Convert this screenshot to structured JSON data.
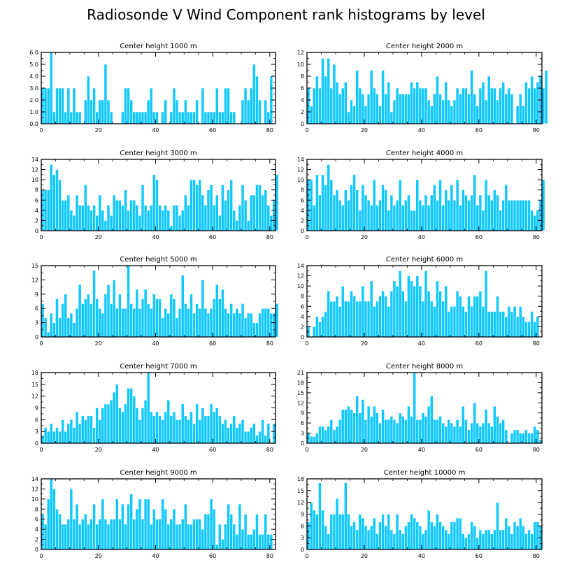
{
  "title": "Radiosonde V Wind Component rank histograms by level",
  "colors": {
    "bar": "#11c8ff",
    "bar_edge": "#ffffff",
    "axis": "#000000",
    "background": "#ffffff"
  },
  "chart_data": [
    {
      "type": "bar",
      "title": "Center height 1000 m",
      "xlabel": "",
      "ylabel": "",
      "xlim": [
        0,
        82
      ],
      "ylim": [
        0,
        6
      ],
      "xticks": [
        0,
        20,
        40,
        60,
        80
      ],
      "yticks": [
        0,
        1,
        2,
        3,
        4,
        5,
        6
      ],
      "ytick_labels": [
        "0.0",
        "1.0",
        "2.0",
        "3.0",
        "4.0",
        "5.0",
        "6.0"
      ],
      "values": [
        3,
        3,
        3,
        6,
        1,
        3,
        3,
        3,
        1,
        3,
        1,
        3,
        1,
        1,
        0,
        2,
        4,
        2,
        3,
        1,
        2,
        2,
        5,
        2,
        1,
        0,
        0,
        0,
        1,
        3,
        3,
        2,
        1,
        1,
        1,
        1,
        1,
        2,
        3,
        1,
        1,
        0,
        1,
        2,
        0,
        1,
        3,
        2,
        1,
        1,
        2,
        1,
        1,
        1,
        2,
        0,
        3,
        1,
        1,
        1,
        1,
        3,
        1,
        1,
        3,
        3,
        1,
        1,
        0,
        0,
        2,
        3,
        2,
        3,
        5,
        4,
        2,
        0,
        2,
        1,
        4
      ]
    },
    {
      "type": "bar",
      "title": "Center height 2000 m",
      "xlabel": "",
      "ylabel": "",
      "xlim": [
        0,
        82
      ],
      "ylim": [
        0,
        12
      ],
      "xticks": [
        0,
        20,
        40,
        60,
        80
      ],
      "yticks": [
        0,
        2,
        4,
        6,
        8,
        10,
        12
      ],
      "ytick_labels": [
        "0",
        "2",
        "4",
        "6",
        "8",
        "10",
        "12"
      ],
      "values": [
        6,
        3,
        6,
        8,
        6,
        11,
        8,
        11,
        6,
        10,
        7,
        5,
        6,
        7,
        2,
        4,
        3,
        9,
        6,
        5,
        3,
        5,
        9,
        6,
        5,
        3,
        9,
        5,
        7,
        2,
        4,
        6,
        5,
        5,
        5,
        5,
        7,
        6,
        7,
        6,
        6,
        6,
        4,
        3,
        5,
        8,
        5,
        4,
        7,
        4,
        3,
        4,
        6,
        5,
        6,
        6,
        5,
        9,
        5,
        3,
        6,
        7,
        4,
        8,
        6,
        6,
        4,
        6,
        7,
        5,
        6,
        5,
        0,
        3,
        5,
        3,
        7,
        6,
        8,
        6,
        7,
        8,
        6,
        9
      ]
    },
    {
      "type": "bar",
      "title": "Center height 3000 m",
      "xlabel": "",
      "ylabel": "",
      "xlim": [
        0,
        82
      ],
      "ylim": [
        0,
        14
      ],
      "xticks": [
        0,
        20,
        40,
        60,
        80
      ],
      "yticks": [
        0,
        2,
        4,
        6,
        8,
        10,
        12,
        14
      ],
      "ytick_labels": [
        "0",
        "2",
        "4",
        "6",
        "8",
        "10",
        "12",
        "14"
      ],
      "values": [
        8,
        8,
        8,
        13,
        11,
        12,
        10,
        6,
        6,
        7,
        4,
        3,
        7,
        5,
        5,
        9,
        5,
        4,
        5,
        3,
        7,
        4,
        2,
        5,
        3,
        7,
        6,
        6,
        5,
        8,
        4,
        6,
        6,
        5,
        3,
        9,
        5,
        4,
        5,
        11,
        10,
        5,
        4,
        5,
        4,
        1,
        5,
        5,
        3,
        4,
        7,
        5,
        10,
        10,
        9,
        10,
        7,
        5,
        8,
        9,
        5,
        7,
        3,
        9,
        6,
        8,
        10,
        4,
        2,
        5,
        9,
        6,
        2,
        7,
        7,
        9,
        9,
        7,
        8,
        5,
        3,
        6,
        11
      ]
    },
    {
      "type": "bar",
      "title": "Center height 4000 m",
      "xlabel": "",
      "ylabel": "",
      "xlim": [
        0,
        82
      ],
      "ylim": [
        0,
        14
      ],
      "xticks": [
        0,
        20,
        40,
        60,
        80
      ],
      "yticks": [
        0,
        2,
        4,
        6,
        8,
        10,
        12,
        14
      ],
      "ytick_labels": [
        "0",
        "2",
        "4",
        "6",
        "8",
        "10",
        "12",
        "14"
      ],
      "values": [
        10,
        10,
        5,
        11,
        7,
        11,
        9,
        13,
        10,
        7,
        8,
        6,
        5,
        8,
        6,
        9,
        11,
        8,
        4,
        9,
        7,
        6,
        5,
        10,
        5,
        6,
        9,
        8,
        4,
        7,
        5,
        6,
        10,
        5,
        6,
        7,
        4,
        4,
        10,
        6,
        5,
        7,
        5,
        7,
        9,
        6,
        10,
        5,
        8,
        6,
        9,
        6,
        10,
        5,
        8,
        7,
        6,
        7,
        11,
        5,
        7,
        4,
        10,
        7,
        6,
        8,
        7,
        4,
        6,
        9,
        6,
        6,
        6,
        6,
        6,
        6,
        6,
        6,
        4,
        3,
        4,
        6,
        10
      ]
    },
    {
      "type": "bar",
      "title": "Center height 5000 m",
      "xlabel": "",
      "ylabel": "",
      "xlim": [
        0,
        82
      ],
      "ylim": [
        0,
        15
      ],
      "xticks": [
        0,
        20,
        40,
        60,
        80
      ],
      "yticks": [
        0,
        3,
        6,
        9,
        12,
        15
      ],
      "ytick_labels": [
        "0",
        "3",
        "6",
        "9",
        "12",
        "15"
      ],
      "values": [
        7,
        4,
        1,
        5,
        3,
        8,
        4,
        7,
        9,
        4,
        5,
        3,
        6,
        11,
        7,
        8,
        9,
        7,
        14,
        8,
        6,
        5,
        9,
        11,
        7,
        12,
        6,
        9,
        6,
        6,
        15,
        7,
        6,
        10,
        6,
        8,
        10,
        7,
        6,
        9,
        8,
        8,
        4,
        6,
        5,
        9,
        8,
        4,
        6,
        13,
        7,
        6,
        9,
        5,
        7,
        6,
        12,
        6,
        5,
        6,
        8,
        11,
        8,
        10,
        6,
        5,
        7,
        5,
        6,
        5,
        7,
        4,
        5,
        5,
        3,
        3,
        5,
        6,
        6,
        6,
        5,
        5,
        7
      ]
    },
    {
      "type": "bar",
      "title": "Center height 6000 m",
      "xlabel": "",
      "ylabel": "",
      "xlim": [
        0,
        82
      ],
      "ylim": [
        0,
        14
      ],
      "xticks": [
        0,
        20,
        40,
        60,
        80
      ],
      "yticks": [
        0,
        2,
        4,
        6,
        8,
        10,
        12,
        14
      ],
      "ytick_labels": [
        "0",
        "2",
        "4",
        "6",
        "8",
        "10",
        "12",
        "14"
      ],
      "values": [
        2,
        0,
        2,
        4,
        3,
        4,
        5,
        9,
        7,
        7,
        8,
        6,
        10,
        7,
        7,
        9,
        8,
        7,
        7,
        10,
        7,
        7,
        11,
        6,
        7,
        8,
        9,
        8,
        6,
        9,
        11,
        10,
        13,
        9,
        7,
        12,
        11,
        10,
        12,
        10,
        7,
        13,
        9,
        7,
        6,
        11,
        9,
        7,
        10,
        5,
        6,
        6,
        9,
        8,
        6,
        5,
        8,
        6,
        8,
        8,
        9,
        6,
        13,
        5,
        5,
        5,
        8,
        5,
        5,
        4,
        6,
        5,
        6,
        4,
        6,
        4,
        3,
        3,
        5,
        3,
        4
      ]
    },
    {
      "type": "bar",
      "title": "Center height 7000 m",
      "xlabel": "",
      "ylabel": "",
      "xlim": [
        0,
        82
      ],
      "ylim": [
        0,
        18
      ],
      "xticks": [
        0,
        20,
        40,
        60,
        80
      ],
      "yticks": [
        0,
        3,
        6,
        9,
        12,
        15,
        18
      ],
      "ytick_labels": [
        "0",
        "3",
        "6",
        "9",
        "12",
        "15",
        "18"
      ],
      "values": [
        2,
        4,
        3,
        5,
        3,
        4,
        3,
        6,
        3,
        5,
        6,
        4,
        8,
        5,
        7,
        6,
        7,
        7,
        4,
        9,
        6,
        9,
        10,
        10,
        11,
        13,
        15,
        9,
        8,
        10,
        14,
        14,
        12,
        9,
        6,
        9,
        11,
        18,
        8,
        7,
        8,
        7,
        6,
        8,
        11,
        7,
        8,
        6,
        6,
        10,
        7,
        6,
        8,
        5,
        10,
        6,
        9,
        7,
        7,
        10,
        8,
        9,
        7,
        5,
        6,
        4,
        5,
        7,
        4,
        5,
        6,
        3,
        3,
        4,
        5,
        2,
        3,
        6,
        2,
        5,
        0,
        5
      ]
    },
    {
      "type": "bar",
      "title": "Center height 8000 m",
      "xlabel": "",
      "ylabel": "",
      "xlim": [
        0,
        82
      ],
      "ylim": [
        0,
        21
      ],
      "xticks": [
        0,
        20,
        40,
        60,
        80
      ],
      "yticks": [
        0,
        3,
        6,
        9,
        12,
        15,
        18,
        21
      ],
      "ytick_labels": [
        "0",
        "3",
        "6",
        "9",
        "12",
        "15",
        "18",
        "21"
      ],
      "values": [
        3,
        2,
        2,
        3,
        5,
        5,
        4,
        5,
        7,
        4,
        5,
        7,
        10,
        10,
        11,
        10,
        9,
        14,
        9,
        13,
        7,
        11,
        8,
        11,
        9,
        6,
        10,
        7,
        7,
        8,
        7,
        6,
        9,
        8,
        7,
        11,
        8,
        21,
        7,
        7,
        9,
        8,
        11,
        14,
        7,
        7,
        8,
        6,
        5,
        7,
        6,
        5,
        7,
        5,
        11,
        7,
        4,
        6,
        12,
        6,
        5,
        6,
        10,
        6,
        5,
        11,
        8,
        6,
        7,
        4,
        0,
        3,
        4,
        4,
        3,
        3,
        4,
        3,
        3,
        5,
        4,
        1
      ]
    },
    {
      "type": "bar",
      "title": "Center height 9000 m",
      "xlabel": "",
      "ylabel": "",
      "xlim": [
        0,
        82
      ],
      "ylim": [
        0,
        14
      ],
      "xticks": [
        0,
        20,
        40,
        60,
        80
      ],
      "yticks": [
        0,
        2,
        4,
        6,
        8,
        10,
        12,
        14
      ],
      "ytick_labels": [
        "0",
        "2",
        "4",
        "6",
        "8",
        "10",
        "12",
        "14"
      ],
      "values": [
        7,
        5,
        10,
        14,
        12,
        8,
        7,
        5,
        5,
        6,
        12,
        6,
        9,
        5,
        6,
        7,
        5,
        6,
        9,
        5,
        6,
        10,
        6,
        5,
        6,
        6,
        10,
        6,
        9,
        5,
        9,
        11,
        6,
        8,
        10,
        6,
        10,
        10,
        5,
        8,
        6,
        6,
        10,
        8,
        5,
        6,
        8,
        5,
        5,
        6,
        9,
        5,
        5,
        6,
        6,
        6,
        4,
        7,
        7,
        10,
        8,
        1,
        5,
        2,
        5,
        9,
        7,
        5,
        3,
        9,
        4,
        7,
        3,
        3,
        4,
        7,
        3,
        3,
        7,
        3,
        3
      ]
    },
    {
      "type": "bar",
      "title": "Center height 10000 m",
      "xlabel": "",
      "ylabel": "",
      "xlim": [
        0,
        82
      ],
      "ylim": [
        0,
        18
      ],
      "xticks": [
        0,
        20,
        40,
        60,
        80
      ],
      "yticks": [
        0,
        3,
        6,
        9,
        12,
        15,
        18
      ],
      "ytick_labels": [
        "0",
        "3",
        "6",
        "9",
        "12",
        "15",
        "18"
      ],
      "values": [
        7,
        12,
        10,
        9,
        17,
        10,
        6,
        4,
        9,
        9,
        13,
        9,
        9,
        17,
        9,
        6,
        7,
        5,
        9,
        8,
        6,
        5,
        6,
        8,
        4,
        7,
        9,
        6,
        9,
        5,
        4,
        9,
        5,
        4,
        6,
        7,
        9,
        8,
        7,
        6,
        4,
        5,
        10,
        7,
        6,
        9,
        7,
        6,
        5,
        4,
        7,
        7,
        8,
        8,
        4,
        3,
        4,
        7,
        6,
        3,
        5,
        4,
        5,
        5,
        4,
        5,
        12,
        5,
        5,
        8,
        6,
        4,
        7,
        6,
        8,
        6,
        4,
        5,
        4,
        7,
        7,
        6
      ]
    }
  ]
}
